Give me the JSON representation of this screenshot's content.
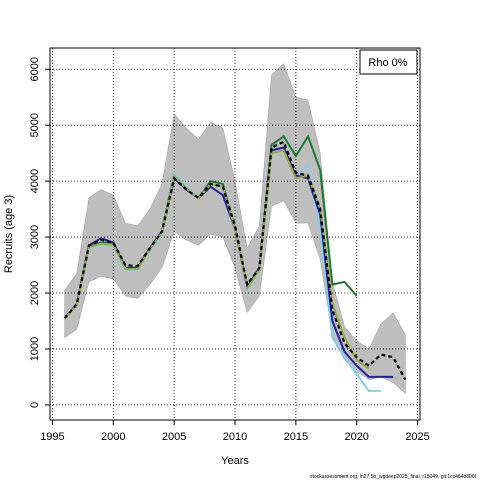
{
  "chart_data": {
    "type": "line",
    "xlabel": "Years",
    "ylabel": "Recruits (age 3)",
    "legend_text": "Rho 0%",
    "legend_position": "top-right",
    "caption": "stockassessment.org, ln27.5b_wgdeep2025_final, r18049, git:1cc464b806f",
    "x": [
      1996,
      1997,
      1998,
      1999,
      2000,
      2001,
      2002,
      2003,
      2004,
      2005,
      2006,
      2007,
      2008,
      2009,
      2010,
      2011,
      2012,
      2013,
      2014,
      2015,
      2016,
      2017,
      2018,
      2019,
      2020,
      2021,
      2022,
      2023,
      2024
    ],
    "band": {
      "color": "#bebebe",
      "upper": [
        2050,
        2350,
        3700,
        3850,
        3750,
        3250,
        3200,
        3500,
        3950,
        5200,
        4950,
        4750,
        5050,
        4950,
        4000,
        2800,
        3200,
        5900,
        6100,
        5500,
        5450,
        4500,
        2200,
        1400,
        1150,
        1000,
        1450,
        1650,
        1250
      ],
      "lower": [
        1200,
        1350,
        2200,
        2300,
        2250,
        1950,
        1900,
        2150,
        2450,
        3100,
        2950,
        2850,
        3050,
        3000,
        2450,
        1650,
        1950,
        3550,
        3650,
        3250,
        3250,
        2600,
        1250,
        800,
        600,
        450,
        500,
        400,
        200
      ]
    },
    "series": [
      {
        "color": "#1a7a2e",
        "values": [
          1550,
          1800,
          2850,
          2900,
          2900,
          2450,
          2450,
          2800,
          3100,
          4150,
          3850,
          3700,
          4000,
          3950,
          3150,
          2100,
          2450,
          4650,
          4800,
          4450,
          4800,
          4200,
          2150,
          2200,
          1950,
          null,
          null,
          null,
          null
        ]
      },
      {
        "color": "#87ceeb",
        "values": [
          1550,
          1780,
          2800,
          2850,
          2850,
          2400,
          2420,
          2750,
          3050,
          4150,
          3900,
          3700,
          3950,
          3900,
          3150,
          2050,
          2400,
          4500,
          4550,
          4100,
          4300,
          3100,
          1200,
          850,
          550,
          250,
          250,
          null,
          null
        ]
      },
      {
        "color": "#2020a0",
        "values": [
          1550,
          1800,
          2850,
          2980,
          2900,
          2450,
          2450,
          2800,
          3100,
          4050,
          3850,
          3700,
          3900,
          3750,
          3150,
          2100,
          2450,
          4550,
          4600,
          4100,
          4050,
          3400,
          1500,
          950,
          700,
          500,
          500,
          500,
          null
        ]
      },
      {
        "color": "#9aa842",
        "values": [
          1540,
          1790,
          2820,
          2880,
          2870,
          2430,
          2430,
          2780,
          3080,
          4100,
          3870,
          3690,
          3950,
          3900,
          3150,
          2080,
          2420,
          4500,
          4550,
          4050,
          4100,
          3500,
          1800,
          1200,
          800,
          650,
          null,
          null,
          null
        ]
      },
      {
        "color": "#000000",
        "dashed": true,
        "values": [
          1550,
          1800,
          2850,
          2950,
          2900,
          2500,
          2480,
          2800,
          3100,
          4050,
          3850,
          3700,
          3950,
          3900,
          3200,
          2150,
          2450,
          4600,
          4700,
          4150,
          4100,
          3500,
          1700,
          1100,
          850,
          700,
          900,
          850,
          450
        ]
      }
    ],
    "xlim": [
      1994.8,
      2025.2
    ],
    "ylim": [
      -270,
      6380
    ],
    "xticks": [
      1995,
      2000,
      2005,
      2010,
      2015,
      2020,
      2025
    ],
    "yticks": [
      0,
      1000,
      2000,
      3000,
      4000,
      5000,
      6000
    ],
    "grid": true
  }
}
